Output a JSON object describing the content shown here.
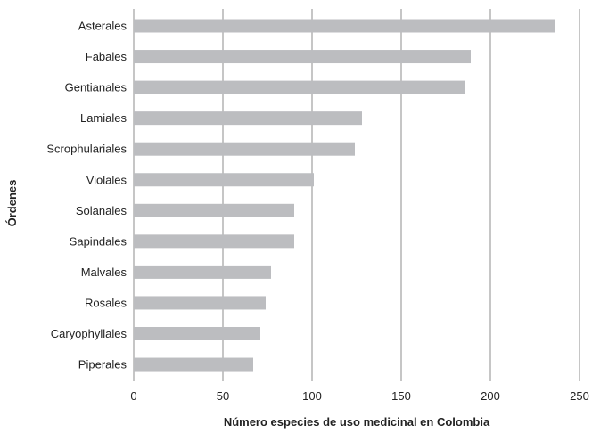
{
  "chart_data": {
    "type": "bar",
    "orientation": "horizontal",
    "categories": [
      "Asterales",
      "Fabales",
      "Gentianales",
      "Lamiales",
      "Scrophulariales",
      "Violales",
      "Solanales",
      "Sapindales",
      "Malvales",
      "Rosales",
      "Caryophyllales",
      "Piperales"
    ],
    "values": [
      236,
      189,
      186,
      128,
      124,
      101,
      90,
      90,
      77,
      74,
      71,
      67
    ],
    "title": "",
    "xlabel": "Número especies de uso medicinal en Colombia",
    "ylabel": "Órdenes",
    "xlim": [
      0,
      250
    ],
    "xticks": [
      "0",
      "50",
      "100",
      "150",
      "200",
      "250"
    ],
    "grid": "vertical",
    "legend": "none",
    "bar_color": "#bcbdc0",
    "grid_color": "#8c8c8c"
  }
}
